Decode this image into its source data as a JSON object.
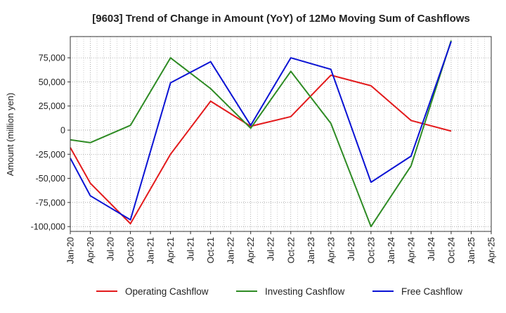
{
  "chart_data": {
    "type": "line",
    "title": "[9603]  Trend of Change in Amount (YoY) of 12Mo Moving Sum of Cashflows",
    "xlabel": "",
    "ylabel": "Amount (million yen)",
    "ylim": [
      -105000,
      97000
    ],
    "yticks": [
      75000,
      50000,
      25000,
      0,
      -25000,
      -50000,
      -75000,
      -100000
    ],
    "ytick_labels": [
      "75,000",
      "50,000",
      "25,000",
      "0",
      "-25,000",
      "-50,000",
      "-75,000",
      "-100,000"
    ],
    "categories": [
      "Jan-20",
      "Apr-20",
      "Jul-20",
      "Oct-20",
      "Jan-21",
      "Apr-21",
      "Jul-21",
      "Oct-21",
      "Jan-22",
      "Apr-22",
      "Jul-22",
      "Oct-22",
      "Jan-23",
      "Apr-23",
      "Jul-23",
      "Oct-23",
      "Jan-24",
      "Apr-24",
      "Jul-24",
      "Oct-24",
      "Jan-25",
      "Apr-25"
    ],
    "grid": true,
    "legend_position": "bottom",
    "series": [
      {
        "name": "Operating Cashflow",
        "color": "#e31a1c",
        "points": [
          [
            0,
            -18000
          ],
          [
            1,
            -55000
          ],
          [
            3,
            -97000
          ],
          [
            5,
            -25000
          ],
          [
            7,
            30000
          ],
          [
            9,
            4000
          ],
          [
            11,
            14000
          ],
          [
            13,
            57000
          ],
          [
            15,
            46000
          ],
          [
            17,
            10000
          ],
          [
            19,
            -1000
          ]
        ]
      },
      {
        "name": "Investing Cashflow",
        "color": "#2e8b24",
        "points": [
          [
            0,
            -10000
          ],
          [
            1,
            -13000
          ],
          [
            3,
            5000
          ],
          [
            5,
            75000
          ],
          [
            7,
            43000
          ],
          [
            9,
            2000
          ],
          [
            11,
            61000
          ],
          [
            13,
            7000
          ],
          [
            15,
            -100000
          ],
          [
            17,
            -37000
          ],
          [
            19,
            93000
          ]
        ]
      },
      {
        "name": "Free Cashflow",
        "color": "#0a12d4",
        "points": [
          [
            0,
            -29000
          ],
          [
            1,
            -68000
          ],
          [
            3,
            -93000
          ],
          [
            5,
            49000
          ],
          [
            7,
            71000
          ],
          [
            9,
            5000
          ],
          [
            11,
            75000
          ],
          [
            13,
            63000
          ],
          [
            15,
            -54000
          ],
          [
            17,
            -27000
          ],
          [
            19,
            92000
          ]
        ]
      }
    ]
  }
}
